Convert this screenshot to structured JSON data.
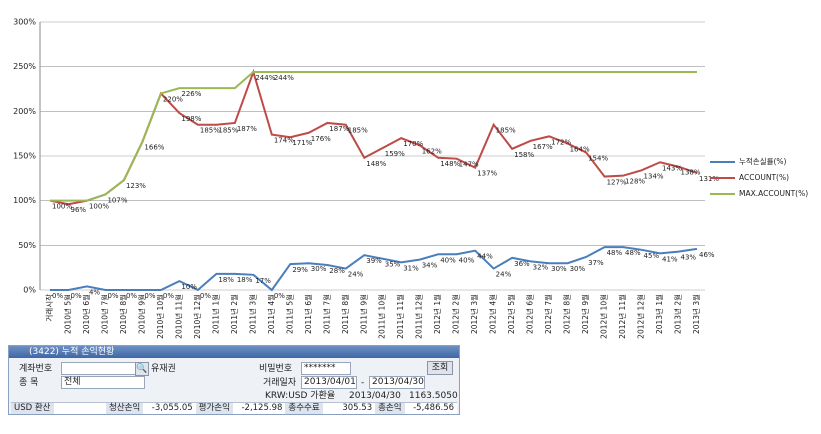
{
  "chart_data": {
    "type": "line",
    "categories": [
      "거래시작",
      "2010년 5월",
      "2010년 6월",
      "2010년 7월",
      "2010년 8월",
      "2010년 9월",
      "2010년 10월",
      "2010년 11월",
      "2010년 12월",
      "2011년 1월",
      "2011년 2월",
      "2011년 3월",
      "2011년 4월",
      "2011년 5월",
      "2011년 6월",
      "2011년 7월",
      "2011년 8월",
      "2011년 9월",
      "2011년 10월",
      "2011년 11월",
      "2011년 12월",
      "2012년 1월",
      "2012년 2월",
      "2012년 3월",
      "2012년 4월",
      "2012년 5월",
      "2012년 6월",
      "2012년 7월",
      "2012년 8월",
      "2012년 9월",
      "2012년 10월",
      "2012년 11월",
      "2012년 12월",
      "2013년 1월",
      "2013년 2월",
      "2013년 3월"
    ],
    "series": [
      {
        "name": "누적손실률(%)",
        "color": "#4a7ebb",
        "values": [
          0,
          0,
          4,
          0,
          0,
          0,
          0,
          10,
          0,
          18,
          18,
          17,
          0,
          29,
          30,
          28,
          24,
          39,
          35,
          31,
          34,
          40,
          40,
          44,
          24,
          36,
          32,
          30,
          30,
          37,
          48,
          48,
          45,
          41,
          43,
          46
        ],
        "value_labels": [
          "0%",
          "0%",
          "4%",
          "0%",
          "0%",
          "0%",
          "0%",
          "10%",
          "0%",
          "18%",
          "18%",
          "17%",
          "0%",
          "29%",
          "30%",
          "28%",
          "24%",
          "39%",
          "35%",
          "31%",
          "34%",
          "40%",
          "40%",
          "44%",
          "24%",
          "36%",
          "32%",
          "30%",
          "30%",
          "37%",
          "48%",
          "48%",
          "45%",
          "41%",
          "43%",
          "46%"
        ]
      },
      {
        "name": "ACCOUNT(%)",
        "color": "#be4b48",
        "values": [
          100,
          96,
          100,
          107,
          123,
          166,
          220,
          198,
          185,
          185,
          187,
          244,
          174,
          171,
          176,
          187,
          185,
          148,
          159,
          170,
          162,
          148,
          147,
          137,
          185,
          158,
          167,
          172,
          164,
          154,
          127,
          128,
          134,
          143,
          138,
          131
        ],
        "value_labels": [
          "100%",
          "96%",
          "100%",
          "107%",
          "123%",
          "166%",
          "220%",
          "198%",
          "185%",
          "185%",
          "187%",
          "244%",
          "174%",
          "171%",
          "176%",
          "187%",
          "185%",
          "148%",
          "159%",
          "170%",
          "162%",
          "148%",
          "147%",
          "137%",
          "185%",
          "158%",
          "167%",
          "172%",
          "164%",
          "154%",
          "127%",
          "128%",
          "134%",
          "143%",
          "138%",
          "131%"
        ]
      },
      {
        "name": "MAX.ACCOUNT(%)",
        "color": "#98b954",
        "values": [
          100,
          100,
          100,
          107,
          123,
          166,
          220,
          226,
          226,
          226,
          226,
          244,
          244,
          244,
          244,
          244,
          244,
          244,
          244,
          244,
          244,
          244,
          244,
          244,
          244,
          244,
          244,
          244,
          244,
          244,
          244,
          244,
          244,
          244,
          244,
          244
        ],
        "value_labels": [
          null,
          null,
          null,
          null,
          null,
          null,
          null,
          "226%",
          null,
          null,
          null,
          null,
          "244%",
          null,
          null,
          null,
          null,
          null,
          null,
          null,
          null,
          null,
          null,
          null,
          null,
          null,
          null,
          null,
          null,
          null,
          null,
          null,
          null,
          null,
          null,
          null
        ]
      }
    ],
    "ylim": [
      0,
      300
    ],
    "yticks": [
      {
        "value": 0,
        "label": "0%"
      },
      {
        "value": 50,
        "label": "50%"
      },
      {
        "value": 100,
        "label": "100%"
      },
      {
        "value": 150,
        "label": "150%"
      },
      {
        "value": 200,
        "label": "200%"
      },
      {
        "value": 250,
        "label": "250%"
      },
      {
        "value": 300,
        "label": "300%"
      }
    ],
    "grid": true,
    "legend": "right"
  },
  "window": {
    "title": "(3422) 누적 손익현황",
    "account_label": "계좌번호",
    "account_name": "유재권",
    "password_label": "비밀번호",
    "password": "*******",
    "query_button": "조회",
    "item_label": "종   목",
    "item_value": "전체",
    "date_label": "거래일자",
    "date_from": "2013/04/01",
    "date_sep": "-",
    "date_to": "2013/04/30",
    "rate_label": "KRW:USD 가환율",
    "rate_date": "2013/04/30",
    "rate_value": "1163.5050",
    "summary": [
      [
        "USD 환산",
        ""
      ],
      [
        "청산손익",
        "-3,055.05"
      ],
      [
        "평가손익",
        "-2,125.98"
      ],
      [
        "총수수료",
        "305.53"
      ],
      [
        "총손익",
        "-5,486.56"
      ]
    ]
  }
}
